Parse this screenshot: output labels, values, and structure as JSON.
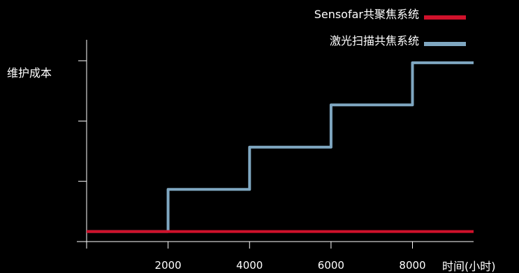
{
  "chart_data": {
    "type": "line",
    "title": "",
    "ylabel": "维护成本",
    "xlabel": "时间(小时)",
    "xlim": [
      0,
      9500
    ],
    "ylim": [
      0,
      4.5
    ],
    "x_ticks": [
      2000,
      4000,
      6000,
      8000
    ],
    "x_tick_labels": [
      "2000",
      "4000",
      "6000",
      "8000"
    ],
    "y_ticks": [
      1.5,
      3.0,
      4.5
    ],
    "grid": false,
    "legend_position": "top-right",
    "series": [
      {
        "name": "Sensofar共聚焦系统",
        "color": "#d0112b",
        "x": [
          0,
          9500
        ],
        "y": [
          0.25,
          0.25
        ]
      },
      {
        "name": "激光扫描共焦系统",
        "color": "#7fa7c1",
        "x": [
          0,
          2000,
          2000,
          4000,
          4000,
          6000,
          6000,
          8000,
          8000,
          9500
        ],
        "y": [
          0.25,
          0.25,
          1.3,
          1.3,
          2.35,
          2.35,
          3.4,
          3.4,
          4.45,
          4.45
        ]
      }
    ],
    "colors": {
      "background": "#000000",
      "axis": "#ffffff",
      "text": "#ffffff"
    }
  }
}
